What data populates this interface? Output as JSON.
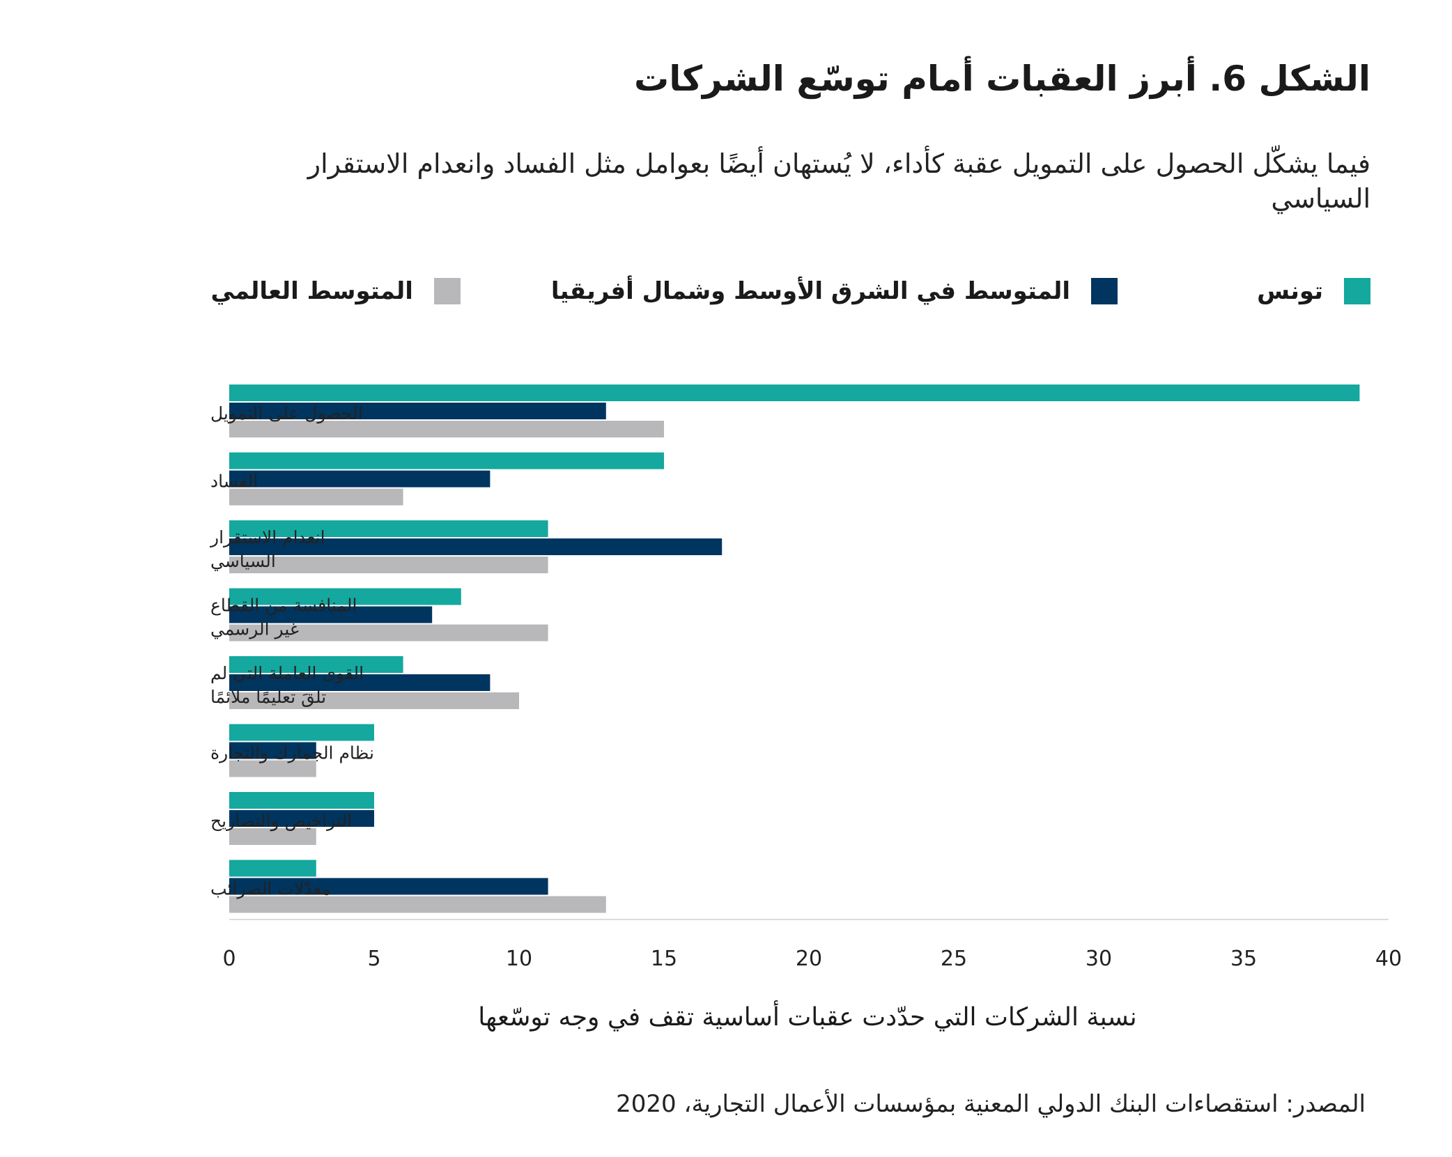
{
  "title": "الشكل 6. أبرز العقبات أمام توسّع الشركات",
  "subtitle": "فيما يشكّل الحصول على التمويل عقبة كأداء، لا يُستهان أيضًا بعوامل مثل الفساد وانعدام الاستقرار السياسي",
  "source": "المصدر: استقصاءات البنك الدولي المعنية بمؤسسات الأعمال التجارية، 2020",
  "chart_data": {
    "type": "bar",
    "orientation": "horizontal",
    "xlabel": "نسبة الشركات التي حدّدت عقبات أساسية تقف في وجه توسّعها",
    "xlim": [
      0,
      40
    ],
    "xticks": [
      "0",
      "5",
      "10",
      "15",
      "20",
      "25",
      "30",
      "35",
      "40"
    ],
    "grid": false,
    "legend_position": "top",
    "categories": [
      [
        "الحصول على التمويل"
      ],
      [
        "الفساد"
      ],
      [
        "انعدام الاستقرار",
        "السياسي"
      ],
      [
        "المنافسة من القطاع",
        "غير الرسمي"
      ],
      [
        "القوى العاملة التي لم",
        "تلقَ تعليمًا ملائمًا"
      ],
      [
        "نظام الجمارك والتجارة"
      ],
      [
        "التراخيص والتصاريح"
      ],
      [
        "معدّلات الضرائب"
      ]
    ],
    "series": [
      {
        "name": "تونس",
        "color": "#14a89e",
        "values": [
          39,
          15,
          11,
          8,
          6,
          5,
          5,
          3
        ]
      },
      {
        "name": "المتوسط في الشرق الأوسط وشمال أفريقيا",
        "color": "#003560",
        "values": [
          13,
          9,
          17,
          7,
          9,
          3,
          5,
          11
        ]
      },
      {
        "name": "المتوسط العالمي",
        "color": "#b8b8bb",
        "values": [
          15,
          6,
          11,
          11,
          10,
          3,
          3,
          13
        ]
      }
    ]
  }
}
